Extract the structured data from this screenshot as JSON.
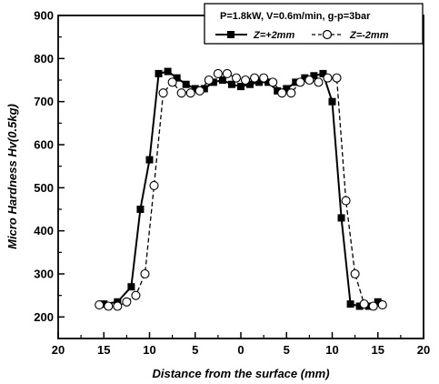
{
  "chart_data": {
    "type": "scatter",
    "title": "",
    "xlabel": "Distance from the surface (mm)",
    "ylabel": "Micro Hardness Hv(0.5kg)",
    "xlim": [
      -20,
      20
    ],
    "ylim": [
      150,
      900
    ],
    "x_axis_reversed_left_half": true,
    "x_tick_labels": [
      "20",
      "15",
      "10",
      "5",
      "0",
      "5",
      "10",
      "15",
      "20"
    ],
    "y_tick_labels": [
      "200",
      "300",
      "400",
      "500",
      "600",
      "700",
      "800",
      "900"
    ],
    "y_ticks": [
      200,
      300,
      400,
      500,
      600,
      700,
      800,
      900
    ],
    "grid": false,
    "legend_position": "top-right",
    "legend_header": "P=1.8kW, V=0.6m/min, g-p=3bar",
    "series": [
      {
        "name": "Z=+2mm",
        "marker": "square-filled",
        "line": "solid",
        "color": "#000000",
        "points": [
          [
            -15,
            230
          ],
          [
            -13.5,
            235
          ],
          [
            -12,
            270
          ],
          [
            -11,
            450
          ],
          [
            -10,
            565
          ],
          [
            -9,
            765
          ],
          [
            -8,
            770
          ],
          [
            -7,
            755
          ],
          [
            -6,
            740
          ],
          [
            -5,
            730
          ],
          [
            -4,
            730
          ],
          [
            -3,
            745
          ],
          [
            -2,
            750
          ],
          [
            -1,
            740
          ],
          [
            0,
            735
          ],
          [
            1,
            740
          ],
          [
            2,
            745
          ],
          [
            3,
            745
          ],
          [
            4,
            725
          ],
          [
            5,
            730
          ],
          [
            6,
            745
          ],
          [
            7,
            755
          ],
          [
            8,
            760
          ],
          [
            9,
            765
          ],
          [
            10,
            700
          ],
          [
            11,
            430
          ],
          [
            12,
            230
          ],
          [
            13,
            225
          ],
          [
            14,
            225
          ],
          [
            15,
            235
          ]
        ]
      },
      {
        "name": "Z=-2mm",
        "marker": "circle-open",
        "line": "dashed",
        "color": "#000000",
        "points": [
          [
            -15.5,
            228
          ],
          [
            -14.5,
            225
          ],
          [
            -13.5,
            225
          ],
          [
            -12.5,
            235
          ],
          [
            -11.5,
            250
          ],
          [
            -10.5,
            300
          ],
          [
            -9.5,
            505
          ],
          [
            -8.5,
            720
          ],
          [
            -7.5,
            745
          ],
          [
            -6.5,
            720
          ],
          [
            -5.5,
            720
          ],
          [
            -4.5,
            725
          ],
          [
            -3.5,
            750
          ],
          [
            -2.5,
            765
          ],
          [
            -1.5,
            765
          ],
          [
            -0.5,
            755
          ],
          [
            0.5,
            750
          ],
          [
            1.5,
            755
          ],
          [
            2.5,
            755
          ],
          [
            3.5,
            745
          ],
          [
            4.5,
            720
          ],
          [
            5.5,
            720
          ],
          [
            6.5,
            745
          ],
          [
            7.5,
            750
          ],
          [
            8.5,
            745
          ],
          [
            9.5,
            755
          ],
          [
            10.5,
            755
          ],
          [
            11.5,
            470
          ],
          [
            12.5,
            300
          ],
          [
            13.5,
            230
          ],
          [
            14.5,
            225
          ],
          [
            15.5,
            228
          ]
        ]
      }
    ]
  }
}
